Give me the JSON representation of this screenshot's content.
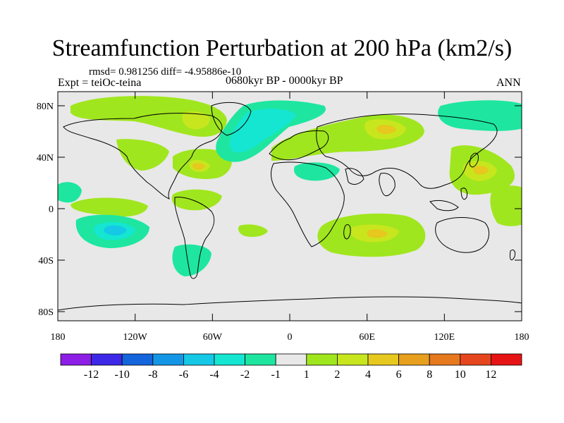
{
  "title": "Streamfunction Perturbation at 200 hPa (km2/s)",
  "subtitle": "rmsd= 0.981256 diff= -4.95886e-10",
  "left_label": "Expt = teiOc-teina",
  "center_label": "0680kyr BP - 0000kyr BP",
  "right_label": "ANN",
  "map": {
    "background_color": "#e8e8e8",
    "coastline_color": "#000000",
    "lat_labels": [
      "80N",
      "40N",
      "0",
      "40S",
      "80S"
    ],
    "lon_labels": [
      "180",
      "120W",
      "60W",
      "0",
      "60E",
      "120E",
      "180"
    ]
  },
  "colorbar": {
    "colors": [
      "#8c1ee6",
      "#3c28e6",
      "#1464dc",
      "#1496e6",
      "#14c8e6",
      "#14e6d2",
      "#1ee6a0",
      "#e8e8e8",
      "#a0e61e",
      "#c8e61e",
      "#e6c81e",
      "#e6a01e",
      "#e6781e",
      "#e6461e",
      "#e61414"
    ],
    "labels": [
      "-12",
      "-10",
      "-8",
      "-6",
      "-4",
      "-2",
      "-1",
      "1",
      "2",
      "4",
      "6",
      "8",
      "10",
      "12"
    ]
  }
}
